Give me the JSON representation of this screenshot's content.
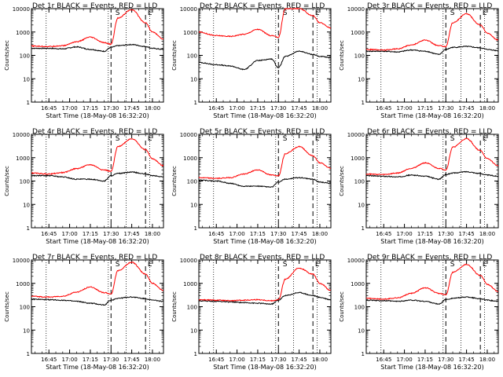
{
  "figure": {
    "x_tick_labels": [
      "16:45",
      "17:00",
      "17:15",
      "17:30",
      "17:45",
      "18:00"
    ],
    "xlabel": "Start Time (18-May-08 16:32:20)",
    "ylabel": "Counts/sec",
    "y_tick_labels": [
      "1",
      "10",
      "100",
      "1000",
      "10000"
    ],
    "marker_labels": [
      "S",
      "E"
    ],
    "colors": {
      "events": "#000000",
      "lld": "#ff0000"
    }
  },
  "chart_data": [
    {
      "type": "line",
      "title": "Det 1r BLACK = Events, RED = LLD",
      "ylim": [
        1,
        10000
      ],
      "yscale": "log",
      "x_time_range": [
        "16:32:20",
        "18:08:00"
      ],
      "series": [
        {
          "name": "Events",
          "color": "#000000",
          "x": [
            "16:32",
            "16:45",
            "16:55",
            "17:05",
            "17:15",
            "17:25",
            "17:30",
            "17:35",
            "17:45",
            "17:55",
            "18:00",
            "18:08"
          ],
          "y": [
            200,
            200,
            190,
            230,
            180,
            150,
            220,
            260,
            290,
            240,
            200,
            180
          ]
        },
        {
          "name": "LLD",
          "color": "#ff0000",
          "x": [
            "16:32",
            "16:45",
            "16:55",
            "17:05",
            "17:15",
            "17:25",
            "17:30",
            "17:35",
            "17:45",
            "17:55",
            "18:00",
            "18:08"
          ],
          "y": [
            250,
            240,
            260,
            380,
            600,
            350,
            300,
            4000,
            9000,
            2500,
            1000,
            500
          ]
        }
      ]
    },
    {
      "type": "line",
      "title": "Det 2r BLACK = Events, RED = LLD",
      "ylim": [
        1,
        10000
      ],
      "yscale": "log",
      "x_time_range": [
        "16:32:20",
        "18:08:00"
      ],
      "series": [
        {
          "name": "Events",
          "color": "#000000",
          "x": [
            "16:32",
            "16:45",
            "16:55",
            "17:05",
            "17:15",
            "17:25",
            "17:30",
            "17:35",
            "17:45",
            "17:55",
            "18:00",
            "18:08"
          ],
          "y": [
            50,
            40,
            35,
            25,
            60,
            70,
            30,
            90,
            150,
            110,
            90,
            80
          ]
        },
        {
          "name": "LLD",
          "color": "#ff0000",
          "x": [
            "16:32",
            "16:45",
            "16:55",
            "17:05",
            "17:15",
            "17:25",
            "17:30",
            "17:35",
            "17:45",
            "17:55",
            "18:00",
            "18:08"
          ],
          "y": [
            1000,
            700,
            650,
            800,
            1300,
            700,
            600,
            10000,
            10000,
            5000,
            2500,
            1500
          ]
        }
      ]
    },
    {
      "type": "line",
      "title": "Det 3r BLACK = Events, RED = LLD",
      "ylim": [
        1,
        10000
      ],
      "yscale": "log",
      "x_time_range": [
        "16:32:20",
        "18:08:00"
      ],
      "series": [
        {
          "name": "Events",
          "color": "#000000",
          "x": [
            "16:32",
            "16:45",
            "16:55",
            "17:05",
            "17:15",
            "17:25",
            "17:30",
            "17:35",
            "17:45",
            "17:55",
            "18:00",
            "18:08"
          ],
          "y": [
            150,
            150,
            140,
            170,
            150,
            110,
            180,
            220,
            240,
            210,
            180,
            160
          ]
        },
        {
          "name": "LLD",
          "color": "#ff0000",
          "x": [
            "16:32",
            "16:45",
            "16:55",
            "17:05",
            "17:15",
            "17:25",
            "17:30",
            "17:35",
            "17:45",
            "17:55",
            "18:00",
            "18:08"
          ],
          "y": [
            180,
            170,
            190,
            280,
            450,
            260,
            240,
            2500,
            6000,
            2000,
            900,
            450
          ]
        }
      ]
    },
    {
      "type": "line",
      "title": "Det 4r BLACK = Events, RED = LLD",
      "ylim": [
        1,
        10000
      ],
      "yscale": "log",
      "x_time_range": [
        "16:32:20",
        "18:08:00"
      ],
      "series": [
        {
          "name": "Events",
          "color": "#000000",
          "x": [
            "16:32",
            "16:45",
            "16:55",
            "17:05",
            "17:15",
            "17:25",
            "17:30",
            "17:35",
            "17:45",
            "17:55",
            "18:00",
            "18:08"
          ],
          "y": [
            170,
            170,
            150,
            120,
            120,
            100,
            170,
            210,
            240,
            200,
            170,
            150
          ]
        },
        {
          "name": "LLD",
          "color": "#ff0000",
          "x": [
            "16:32",
            "16:45",
            "16:55",
            "17:05",
            "17:15",
            "17:25",
            "17:30",
            "17:35",
            "17:45",
            "17:55",
            "18:00",
            "18:08"
          ],
          "y": [
            220,
            200,
            230,
            340,
            500,
            300,
            260,
            3000,
            6500,
            2200,
            900,
            450
          ]
        }
      ]
    },
    {
      "type": "line",
      "title": "Det 5r BLACK = Events, RED = LLD",
      "ylim": [
        1,
        10000
      ],
      "yscale": "log",
      "x_time_range": [
        "16:32:20",
        "18:08:00"
      ],
      "series": [
        {
          "name": "Events",
          "color": "#000000",
          "x": [
            "16:32",
            "16:45",
            "16:55",
            "17:05",
            "17:15",
            "17:25",
            "17:30",
            "17:35",
            "17:45",
            "17:55",
            "18:00",
            "18:08"
          ],
          "y": [
            110,
            100,
            80,
            60,
            60,
            55,
            90,
            120,
            140,
            120,
            90,
            80
          ]
        },
        {
          "name": "LLD",
          "color": "#ff0000",
          "x": [
            "16:32",
            "16:45",
            "16:55",
            "17:05",
            "17:15",
            "17:25",
            "17:30",
            "17:35",
            "17:45",
            "17:55",
            "18:00",
            "18:08"
          ],
          "y": [
            140,
            130,
            140,
            200,
            300,
            180,
            170,
            1500,
            3000,
            1200,
            600,
            350
          ]
        }
      ]
    },
    {
      "type": "line",
      "title": "Det 6r BLACK = Events, RED = LLD",
      "ylim": [
        1,
        10000
      ],
      "yscale": "log",
      "x_time_range": [
        "16:32:20",
        "18:08:00"
      ],
      "series": [
        {
          "name": "Events",
          "color": "#000000",
          "x": [
            "16:32",
            "16:45",
            "16:55",
            "17:05",
            "17:15",
            "17:25",
            "17:30",
            "17:35",
            "17:45",
            "17:55",
            "18:00",
            "18:08"
          ],
          "y": [
            170,
            160,
            150,
            180,
            160,
            120,
            190,
            220,
            250,
            210,
            180,
            160
          ]
        },
        {
          "name": "LLD",
          "color": "#ff0000",
          "x": [
            "16:32",
            "16:45",
            "16:55",
            "17:05",
            "17:15",
            "17:25",
            "17:30",
            "17:35",
            "17:45",
            "17:55",
            "18:00",
            "18:08"
          ],
          "y": [
            200,
            190,
            220,
            350,
            600,
            350,
            300,
            2800,
            6500,
            2000,
            900,
            450
          ]
        }
      ]
    },
    {
      "type": "line",
      "title": "Det 7r BLACK = Events, RED = LLD",
      "ylim": [
        1,
        10000
      ],
      "yscale": "log",
      "x_time_range": [
        "16:32:20",
        "18:08:00"
      ],
      "series": [
        {
          "name": "Events",
          "color": "#000000",
          "x": [
            "16:32",
            "16:45",
            "16:55",
            "17:05",
            "17:15",
            "17:25",
            "17:30",
            "17:35",
            "17:45",
            "17:55",
            "18:00",
            "18:08"
          ],
          "y": [
            210,
            200,
            190,
            170,
            140,
            120,
            190,
            230,
            260,
            220,
            190,
            170
          ]
        },
        {
          "name": "LLD",
          "color": "#ff0000",
          "x": [
            "16:32",
            "16:45",
            "16:55",
            "17:05",
            "17:15",
            "17:25",
            "17:30",
            "17:35",
            "17:45",
            "17:55",
            "18:00",
            "18:08"
          ],
          "y": [
            280,
            260,
            280,
            420,
            700,
            400,
            350,
            3500,
            8000,
            2500,
            1000,
            500
          ]
        }
      ]
    },
    {
      "type": "line",
      "title": "Det 8r BLACK = Events, RED = LLD",
      "ylim": [
        1,
        10000
      ],
      "yscale": "log",
      "x_time_range": [
        "16:32:20",
        "18:08:00"
      ],
      "series": [
        {
          "name": "Events",
          "color": "#000000",
          "x": [
            "16:32",
            "16:45",
            "16:55",
            "17:05",
            "17:15",
            "17:25",
            "17:30",
            "17:35",
            "17:45",
            "17:55",
            "18:00",
            "18:08"
          ],
          "y": [
            180,
            170,
            160,
            150,
            140,
            130,
            190,
            300,
            400,
            300,
            250,
            200
          ]
        },
        {
          "name": "LLD",
          "color": "#ff0000",
          "x": [
            "16:32",
            "16:45",
            "16:55",
            "17:05",
            "17:15",
            "17:25",
            "17:30",
            "17:35",
            "17:45",
            "17:55",
            "18:00",
            "18:08"
          ],
          "y": [
            200,
            190,
            180,
            190,
            200,
            180,
            200,
            1500,
            4500,
            2500,
            1000,
            500
          ]
        }
      ]
    },
    {
      "type": "line",
      "title": "Det 9r BLACK = Events, RED = LLD",
      "ylim": [
        1,
        10000
      ],
      "yscale": "log",
      "x_time_range": [
        "16:32:20",
        "18:08:00"
      ],
      "series": [
        {
          "name": "Events",
          "color": "#000000",
          "x": [
            "16:32",
            "16:45",
            "16:55",
            "17:05",
            "17:15",
            "17:25",
            "17:30",
            "17:35",
            "17:45",
            "17:55",
            "18:00",
            "18:08"
          ],
          "y": [
            190,
            180,
            170,
            190,
            170,
            130,
            200,
            230,
            260,
            220,
            190,
            170
          ]
        },
        {
          "name": "LLD",
          "color": "#ff0000",
          "x": [
            "16:32",
            "16:45",
            "16:55",
            "17:05",
            "17:15",
            "17:25",
            "17:30",
            "17:35",
            "17:45",
            "17:55",
            "18:00",
            "18:08"
          ],
          "y": [
            230,
            210,
            240,
            370,
            650,
            370,
            320,
            3000,
            6500,
            2200,
            900,
            450
          ]
        }
      ]
    }
  ]
}
